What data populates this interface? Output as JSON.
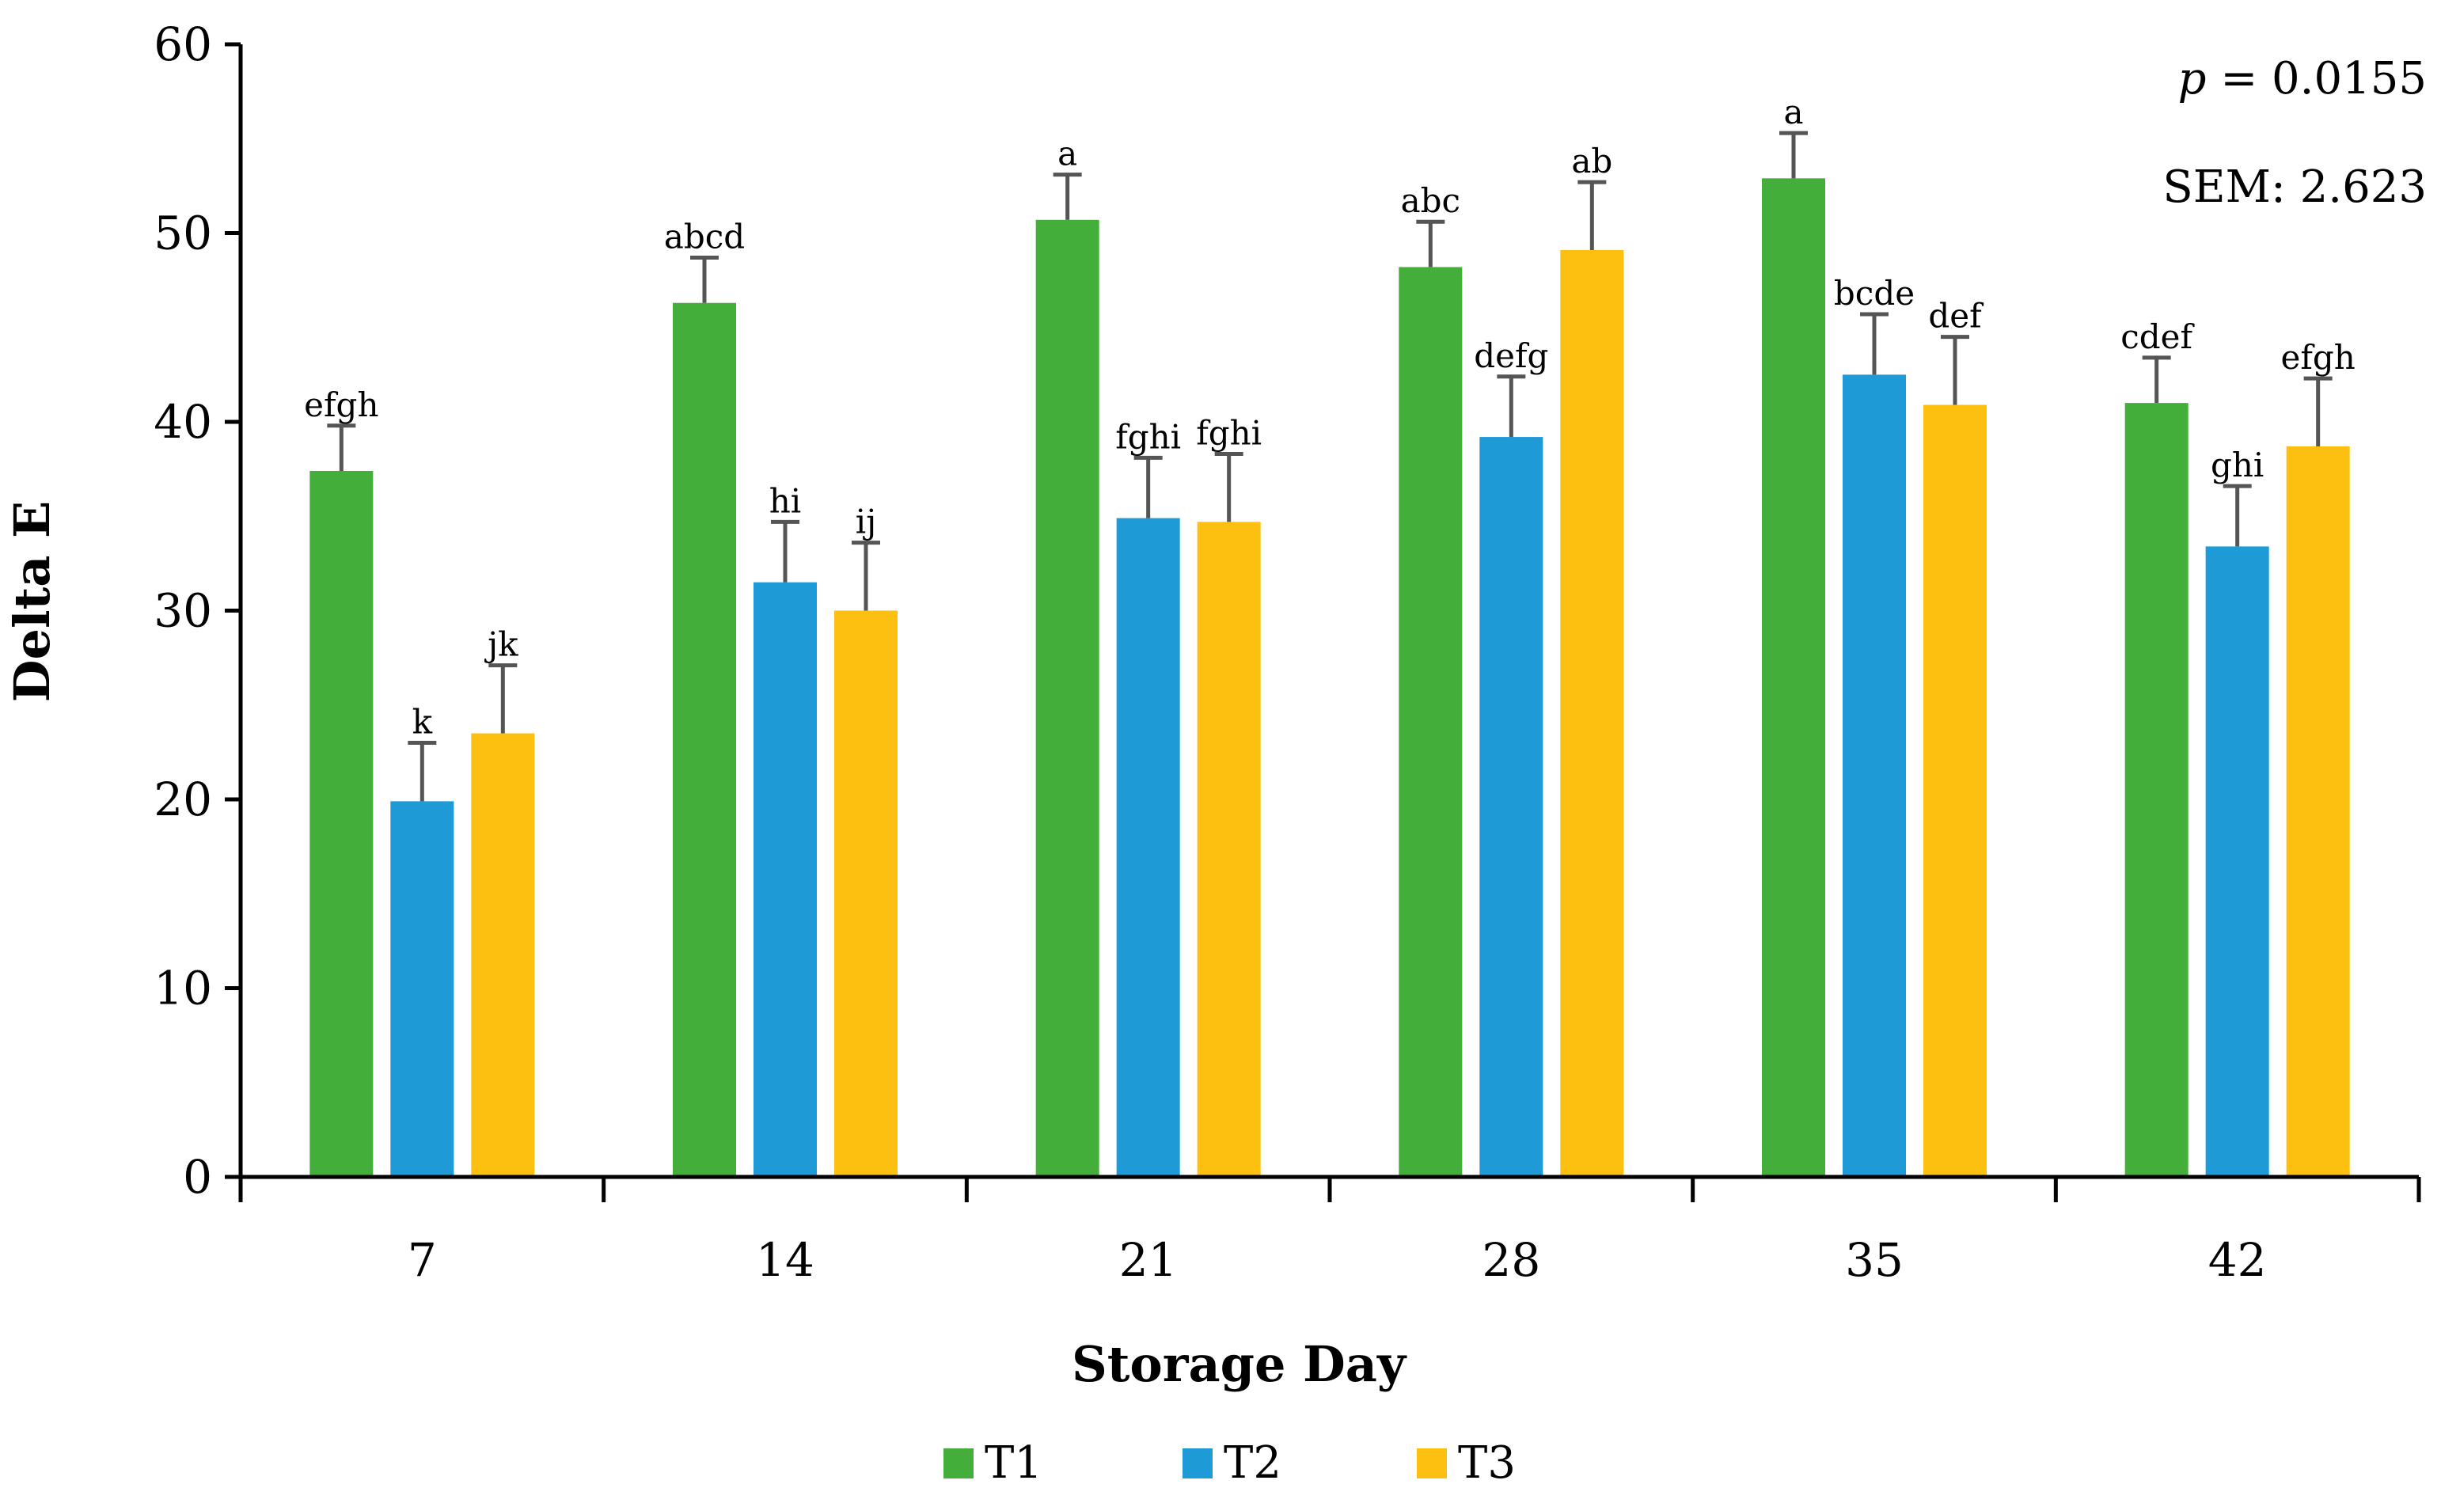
{
  "chart_data": {
    "type": "bar",
    "xlabel": "Storage Day",
    "ylabel": "Delta E",
    "ylim": [
      0,
      60
    ],
    "yticks": [
      0,
      10,
      20,
      30,
      40,
      50,
      60
    ],
    "categories": [
      "7",
      "14",
      "21",
      "28",
      "35",
      "42"
    ],
    "series": [
      {
        "name": "T1",
        "color": "#43AE3A",
        "values": [
          37.4,
          46.3,
          50.7,
          48.2,
          52.9,
          41.0
        ],
        "errors": [
          2.4,
          2.4,
          2.4,
          2.4,
          2.4,
          2.4
        ],
        "labels": [
          "efgh",
          "abcd",
          "a",
          "abc",
          "a",
          "cdef"
        ]
      },
      {
        "name": "T2",
        "color": "#1E9AD6",
        "values": [
          19.9,
          31.5,
          34.9,
          39.2,
          42.5,
          33.4
        ],
        "errors": [
          3.1,
          3.2,
          3.2,
          3.2,
          3.2,
          3.2
        ],
        "labels": [
          "k",
          "hi",
          "fghi",
          "defg",
          "bcde",
          "ghi"
        ]
      },
      {
        "name": "T3",
        "color": "#FDBF10",
        "values": [
          23.5,
          30.0,
          34.7,
          49.1,
          40.9,
          38.7
        ],
        "errors": [
          3.6,
          3.6,
          3.6,
          3.6,
          3.6,
          3.6
        ],
        "labels": [
          "jk",
          "ij",
          "fghi",
          "ab",
          "def",
          "efgh"
        ]
      }
    ],
    "annotations": {
      "p_symbol": "p",
      "p_value": " = 0.0155",
      "sem": "SEM: 2.623"
    },
    "legend_position": "bottom"
  }
}
